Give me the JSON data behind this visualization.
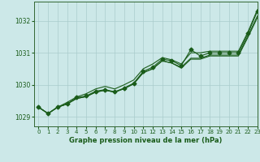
{
  "title": "Graphe pression niveau de la mer (hPa)",
  "background_color": "#cce8e8",
  "grid_color": "#aacccc",
  "line_color": "#1a5c1a",
  "xlim": [
    -0.5,
    23
  ],
  "ylim": [
    1028.7,
    1032.6
  ],
  "yticks": [
    1029,
    1030,
    1031,
    1032
  ],
  "xticks": [
    0,
    1,
    2,
    3,
    4,
    5,
    6,
    7,
    8,
    9,
    10,
    11,
    12,
    13,
    14,
    15,
    16,
    17,
    18,
    19,
    20,
    21,
    22,
    23
  ],
  "series": [
    [
      1029.3,
      1029.1,
      1029.3,
      1029.4,
      1029.57,
      1029.63,
      1029.77,
      1029.83,
      1029.77,
      1029.88,
      1030.03,
      1030.38,
      1030.5,
      1030.75,
      1030.68,
      1030.55,
      1030.83,
      1030.83,
      1030.93,
      1030.93,
      1030.93,
      1030.93,
      1031.53,
      1032.15
    ],
    [
      1029.3,
      1029.1,
      1029.3,
      1029.4,
      1029.57,
      1029.63,
      1029.77,
      1029.83,
      1029.77,
      1029.88,
      1030.03,
      1030.38,
      1030.5,
      1030.75,
      1030.68,
      1030.52,
      1030.8,
      1030.8,
      1030.9,
      1030.9,
      1030.9,
      1030.9,
      1031.48,
      1032.1
    ],
    [
      1029.3,
      1029.1,
      1029.3,
      1029.45,
      1029.62,
      1029.72,
      1029.87,
      1029.95,
      1029.87,
      1030.0,
      1030.15,
      1030.5,
      1030.65,
      1030.85,
      1030.78,
      1030.65,
      1031.0,
      1031.0,
      1031.05,
      1031.05,
      1031.05,
      1031.05,
      1031.65,
      1032.35
    ],
    [
      1029.3,
      1029.1,
      1029.3,
      1029.4,
      1029.6,
      1029.65,
      1029.8,
      1029.85,
      1029.78,
      1029.9,
      1030.05,
      1030.42,
      1030.55,
      1030.8,
      1030.75,
      1030.6,
      1031.1,
      1030.9,
      1031.0,
      1031.0,
      1031.0,
      1031.0,
      1031.6,
      1032.3
    ]
  ],
  "marker_series": 3,
  "marker_style": "D",
  "marker_size": 2.5,
  "line_width": 0.8,
  "spine_color": "#336633",
  "tick_fontsize": 5,
  "title_fontsize": 6,
  "title_fontweight": "bold"
}
